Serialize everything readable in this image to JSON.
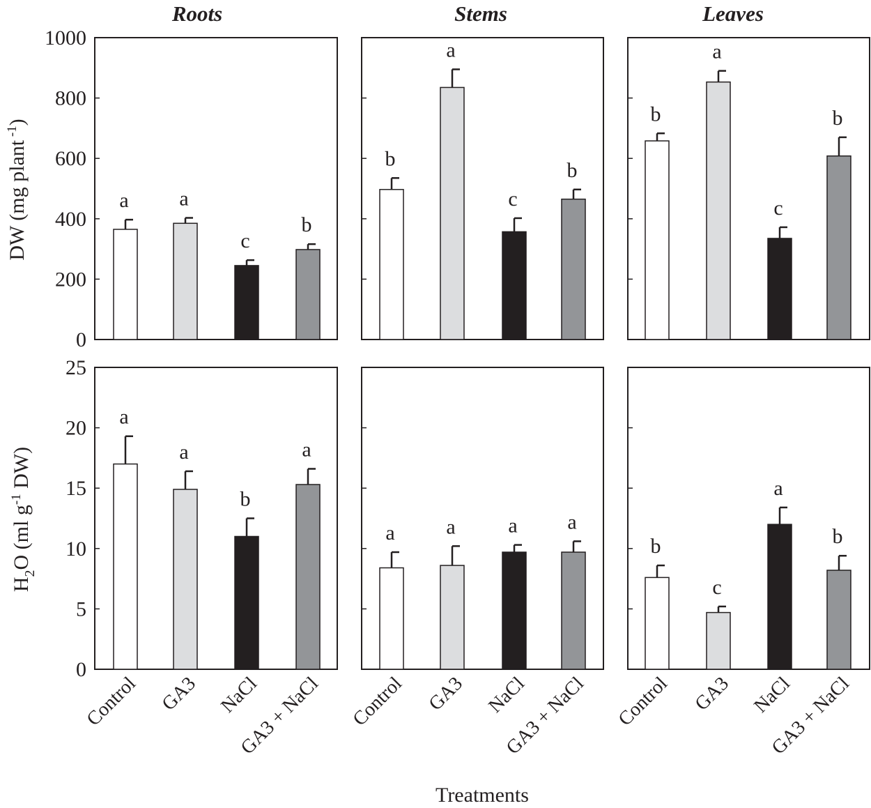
{
  "figure": {
    "columns": [
      "Roots",
      "Stems",
      "Leaves"
    ],
    "xlabel": "Treatments",
    "categories": [
      "Control",
      "GA3",
      "NaCl",
      "GA3 + NaCl"
    ],
    "colors": [
      "#ffffff",
      "#dcdddf",
      "#231f20",
      "#939598"
    ],
    "ylabels": [
      "DW (mg plant -1)",
      "H2O (ml g-1 DW)"
    ]
  },
  "chart_data": [
    {
      "type": "bar",
      "title": "Roots",
      "ylabel": "DW (mg plant -1)",
      "categories": [
        "Control",
        "GA3",
        "NaCl",
        "GA3 + NaCl"
      ],
      "values": [
        365,
        385,
        245,
        298
      ],
      "errors": [
        32,
        18,
        18,
        18
      ],
      "letters": [
        "a",
        "a",
        "c",
        "b"
      ],
      "ylim": [
        0,
        1000
      ],
      "yticks": [
        0,
        200,
        400,
        600,
        800,
        1000
      ]
    },
    {
      "type": "bar",
      "title": "Stems",
      "ylabel": "",
      "categories": [
        "Control",
        "GA3",
        "NaCl",
        "GA3 + NaCl"
      ],
      "values": [
        497,
        835,
        357,
        465
      ],
      "errors": [
        38,
        60,
        45,
        32
      ],
      "letters": [
        "b",
        "a",
        "c",
        "b"
      ],
      "ylim": [
        0,
        1000
      ],
      "yticks": [
        0,
        200,
        400,
        600,
        800,
        1000
      ]
    },
    {
      "type": "bar",
      "title": "Leaves",
      "ylabel": "",
      "categories": [
        "Control",
        "GA3",
        "NaCl",
        "GA3 + NaCl"
      ],
      "values": [
        658,
        853,
        335,
        608
      ],
      "errors": [
        25,
        37,
        37,
        62
      ],
      "letters": [
        "b",
        "a",
        "c",
        "b"
      ],
      "ylim": [
        0,
        1000
      ],
      "yticks": [
        0,
        200,
        400,
        600,
        800,
        1000
      ]
    },
    {
      "type": "bar",
      "title": "",
      "ylabel": "H2O (ml g-1 DW)",
      "categories": [
        "Control",
        "GA3",
        "NaCl",
        "GA3 + NaCl"
      ],
      "values": [
        17.0,
        14.9,
        11.0,
        15.3
      ],
      "errors": [
        2.3,
        1.5,
        1.5,
        1.3
      ],
      "letters": [
        "a",
        "a",
        "b",
        "a"
      ],
      "ylim": [
        0,
        25
      ],
      "yticks": [
        0,
        5,
        10,
        15,
        20,
        25
      ]
    },
    {
      "type": "bar",
      "title": "",
      "ylabel": "",
      "categories": [
        "Control",
        "GA3",
        "NaCl",
        "GA3 + NaCl"
      ],
      "values": [
        8.4,
        8.6,
        9.7,
        9.7
      ],
      "errors": [
        1.3,
        1.6,
        0.6,
        0.9
      ],
      "letters": [
        "a",
        "a",
        "a",
        "a"
      ],
      "ylim": [
        0,
        25
      ],
      "yticks": [
        0,
        5,
        10,
        15,
        20,
        25
      ]
    },
    {
      "type": "bar",
      "title": "",
      "ylabel": "",
      "categories": [
        "Control",
        "GA3",
        "NaCl",
        "GA3 + NaCl"
      ],
      "values": [
        7.6,
        4.7,
        12.0,
        8.2
      ],
      "errors": [
        1.0,
        0.5,
        1.4,
        1.2
      ],
      "letters": [
        "b",
        "c",
        "a",
        "b"
      ],
      "ylim": [
        0,
        25
      ],
      "yticks": [
        0,
        5,
        10,
        15,
        20,
        25
      ]
    }
  ]
}
